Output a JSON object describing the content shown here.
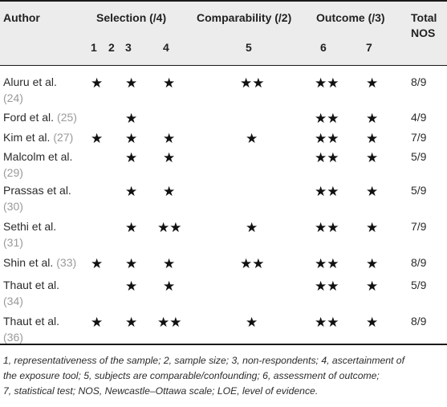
{
  "headers": {
    "author": "Author",
    "selection": "Selection (/4)",
    "comparability": "Comparability (/2)",
    "outcome": "Outcome (/3)",
    "total_line1": "Total",
    "total_line2": "NOS"
  },
  "subheaders": [
    "1",
    "2",
    "3",
    "4",
    "5",
    "6",
    "7"
  ],
  "rows": [
    {
      "author_line1": "Aluru et al.",
      "author_ref": "(24)",
      "ref_on_next_line": true,
      "c1": "★",
      "c2": "",
      "c3": "★",
      "c4": "★",
      "c5": "★★",
      "c6": "★★",
      "c7": "★",
      "total": "8/9"
    },
    {
      "author_line1": "Ford et al.",
      "author_ref": "(25)",
      "ref_on_next_line": false,
      "c1": "",
      "c2": "",
      "c3": "★",
      "c4": "",
      "c5": "",
      "c6": "★★",
      "c7": "★",
      "total": "4/9"
    },
    {
      "author_line1": "Kim et al.",
      "author_ref": "(27)",
      "ref_on_next_line": false,
      "c1": "★",
      "c2": "",
      "c3": "★",
      "c4": "★",
      "c5": "★",
      "c6": "★★",
      "c7": "★",
      "total": "7/9"
    },
    {
      "author_line1": "Malcolm et al.",
      "author_ref": "(29)",
      "ref_on_next_line": true,
      "c1": "",
      "c2": "",
      "c3": "★",
      "c4": "★",
      "c5": "",
      "c6": "★★",
      "c7": "★",
      "total": "5/9"
    },
    {
      "author_line1": "Prassas et al.",
      "author_ref": "(30)",
      "ref_on_next_line": true,
      "c1": "",
      "c2": "",
      "c3": "★",
      "c4": "★",
      "c5": "",
      "c6": "★★",
      "c7": "★",
      "total": "5/9"
    },
    {
      "author_line1": "Sethi et al.",
      "author_ref": "(31)",
      "ref_on_next_line": true,
      "c1": "",
      "c2": "",
      "c3": "★",
      "c4": "★★",
      "c5": "★",
      "c6": "★★",
      "c7": "★",
      "total": "7/9"
    },
    {
      "author_line1": "Shin et al.",
      "author_ref": "(33)",
      "ref_on_next_line": false,
      "c1": "★",
      "c2": "",
      "c3": "★",
      "c4": "★",
      "c5": "★★",
      "c6": "★★",
      "c7": "★",
      "total": "8/9"
    },
    {
      "author_line1": "Thaut et al.",
      "author_ref": "(34)",
      "ref_on_next_line": true,
      "c1": "",
      "c2": "",
      "c3": "★",
      "c4": "★",
      "c5": "",
      "c6": "★★",
      "c7": "★",
      "total": "5/9"
    },
    {
      "author_line1": "Thaut et al.",
      "author_ref": "(36)",
      "ref_on_next_line": true,
      "c1": "★",
      "c2": "",
      "c3": "★",
      "c4": "★★",
      "c5": "★",
      "c6": "★★",
      "c7": "★",
      "total": "8/9"
    }
  ],
  "footnote": [
    "1, representativeness of the sample; 2, sample size; 3, non-respondents; 4, ascertainment of",
    "the exposure tool; 5, subjects are comparable/confounding; 6, assessment of outcome;",
    "7, statistical test; NOS, Newcastle–Ottawa scale; LOE, level of evidence."
  ],
  "colors": {
    "header_bg": "#ececec",
    "rule": "#1a1a1a",
    "ref_text": "#9a9a9a"
  }
}
